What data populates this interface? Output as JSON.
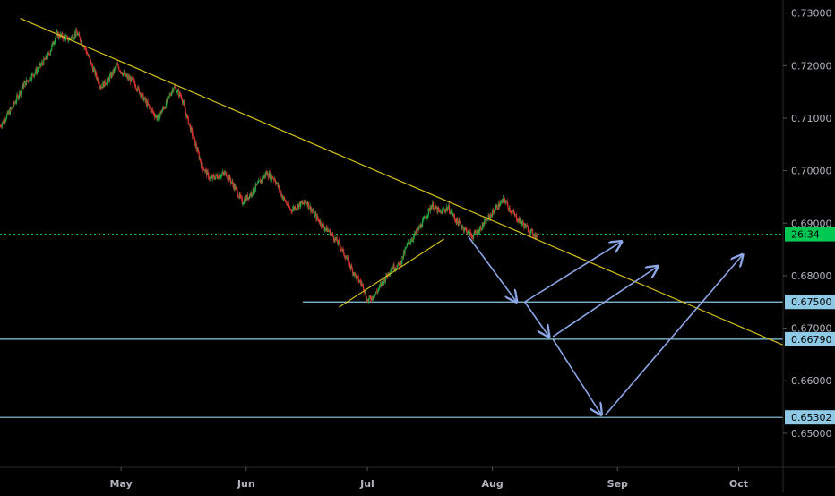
{
  "chart_data": {
    "type": "candlestick",
    "y_ticks": [
      "0.73000",
      "0.72000",
      "0.71000",
      "0.70000",
      "0.69000",
      "0.68000",
      "0.67000",
      "0.66000",
      "0.65000"
    ],
    "x_ticks": [
      "May",
      "Jun",
      "Jul",
      "Aug",
      "Sep",
      "Oct"
    ],
    "ylim": [
      0.6435,
      0.7325
    ],
    "xlim": [
      "2019-04-01",
      "2019-10-12"
    ],
    "x_tick_dates": [
      "2019-05-01",
      "2019-06-01",
      "2019-07-01",
      "2019-08-01",
      "2019-09-01",
      "2019-10-01"
    ],
    "price_labels": [
      {
        "name": "current",
        "text": "26:34",
        "value": 0.6879,
        "color": "#00c853"
      },
      {
        "name": "level-1",
        "text": "0.67500",
        "value": 0.675,
        "color": "#8ecae6"
      },
      {
        "name": "level-2",
        "text": "0.66790",
        "value": 0.6679,
        "color": "#8ecae6"
      },
      {
        "name": "level-3",
        "text": "0.65302",
        "value": 0.65302,
        "color": "#8ecae6"
      }
    ],
    "horizontal_lines": [
      {
        "name": "support-0675",
        "value": 0.675,
        "from": "2019-06-15",
        "color": "#8ecae6"
      },
      {
        "name": "support-06679",
        "value": 0.6679,
        "from": "2019-04-01",
        "color": "#8ecae6"
      },
      {
        "name": "support-065302",
        "value": 0.65302,
        "from": "2019-04-01",
        "color": "#8ecae6"
      },
      {
        "name": "current-price-line",
        "value": 0.6879,
        "from": "2019-04-01",
        "color": "#00c853",
        "dashed": true
      }
    ],
    "trendlines": [
      {
        "name": "descending-resistance",
        "x1": "2019-04-06",
        "y1": 0.729,
        "x2": "2019-10-12",
        "y2": 0.6668,
        "color": "#d4c11c"
      },
      {
        "name": "rising-support",
        "x1": "2019-06-24",
        "y1": 0.674,
        "x2": "2019-07-20",
        "y2": 0.687,
        "color": "#d4c11c"
      }
    ],
    "projection_arrows": [
      {
        "name": "arrow-drop",
        "x1": "2019-07-26",
        "y1": 0.6875,
        "x2": "2019-08-07",
        "y2": 0.675
      },
      {
        "name": "arrow-rise-1",
        "x1": "2019-08-09",
        "y1": 0.675,
        "x2": "2019-09-02",
        "y2": 0.6865
      },
      {
        "name": "arrow-drop-2",
        "x1": "2019-08-09",
        "y1": 0.675,
        "x2": "2019-08-15",
        "y2": 0.6684
      },
      {
        "name": "arrow-rise-2",
        "x1": "2019-08-16",
        "y1": 0.6684,
        "x2": "2019-09-11",
        "y2": 0.6818
      },
      {
        "name": "arrow-drop-3",
        "x1": "2019-08-16",
        "y1": 0.6679,
        "x2": "2019-08-28",
        "y2": 0.6535
      },
      {
        "name": "arrow-rise-3",
        "x1": "2019-08-29",
        "y1": 0.6535,
        "x2": "2019-10-02",
        "y2": 0.684
      }
    ],
    "price_path": [
      [
        "2019-04-01",
        0.7085
      ],
      [
        "2019-04-04",
        0.712
      ],
      [
        "2019-04-07",
        0.7165
      ],
      [
        "2019-04-10",
        0.719
      ],
      [
        "2019-04-13",
        0.722
      ],
      [
        "2019-04-15",
        0.726
      ],
      [
        "2019-04-18",
        0.725
      ],
      [
        "2019-04-20",
        0.7262
      ],
      [
        "2019-04-22",
        0.7235
      ],
      [
        "2019-04-24",
        0.7195
      ],
      [
        "2019-04-26",
        0.716
      ],
      [
        "2019-04-28",
        0.7175
      ],
      [
        "2019-04-30",
        0.72
      ],
      [
        "2019-05-02",
        0.718
      ],
      [
        "2019-05-04",
        0.717
      ],
      [
        "2019-05-06",
        0.7145
      ],
      [
        "2019-05-08",
        0.712
      ],
      [
        "2019-05-10",
        0.71
      ],
      [
        "2019-05-12",
        0.7125
      ],
      [
        "2019-05-14",
        0.716
      ],
      [
        "2019-05-16",
        0.714
      ],
      [
        "2019-05-17",
        0.711
      ],
      [
        "2019-05-19",
        0.706
      ],
      [
        "2019-05-21",
        0.701
      ],
      [
        "2019-05-23",
        0.6985
      ],
      [
        "2019-05-25",
        0.699
      ],
      [
        "2019-05-27",
        0.6995
      ],
      [
        "2019-05-29",
        0.697
      ],
      [
        "2019-05-31",
        0.694
      ],
      [
        "2019-06-02",
        0.6955
      ],
      [
        "2019-06-04",
        0.6975
      ],
      [
        "2019-06-06",
        0.6995
      ],
      [
        "2019-06-08",
        0.6985
      ],
      [
        "2019-06-10",
        0.695
      ],
      [
        "2019-06-12",
        0.6925
      ],
      [
        "2019-06-14",
        0.6935
      ],
      [
        "2019-06-16",
        0.694
      ],
      [
        "2019-06-18",
        0.6915
      ],
      [
        "2019-06-20",
        0.6895
      ],
      [
        "2019-06-22",
        0.688
      ],
      [
        "2019-06-24",
        0.686
      ],
      [
        "2019-06-26",
        0.683
      ],
      [
        "2019-06-28",
        0.68
      ],
      [
        "2019-06-30",
        0.678
      ],
      [
        "2019-07-01",
        0.6752
      ],
      [
        "2019-07-03",
        0.6765
      ],
      [
        "2019-07-05",
        0.679
      ],
      [
        "2019-07-07",
        0.6815
      ],
      [
        "2019-07-09",
        0.682
      ],
      [
        "2019-07-11",
        0.686
      ],
      [
        "2019-07-13",
        0.688
      ],
      [
        "2019-07-15",
        0.6905
      ],
      [
        "2019-07-17",
        0.6935
      ],
      [
        "2019-07-19",
        0.692
      ],
      [
        "2019-07-21",
        0.693
      ],
      [
        "2019-07-23",
        0.6905
      ],
      [
        "2019-07-25",
        0.689
      ],
      [
        "2019-07-27",
        0.6875
      ],
      [
        "2019-07-29",
        0.689
      ],
      [
        "2019-07-31",
        0.691
      ],
      [
        "2019-08-02",
        0.693
      ],
      [
        "2019-08-04",
        0.6945
      ],
      [
        "2019-08-05",
        0.693
      ],
      [
        "2019-08-07",
        0.691
      ],
      [
        "2019-08-09",
        0.6895
      ],
      [
        "2019-08-11",
        0.688
      ],
      [
        "2019-08-12",
        0.6875
      ]
    ]
  }
}
